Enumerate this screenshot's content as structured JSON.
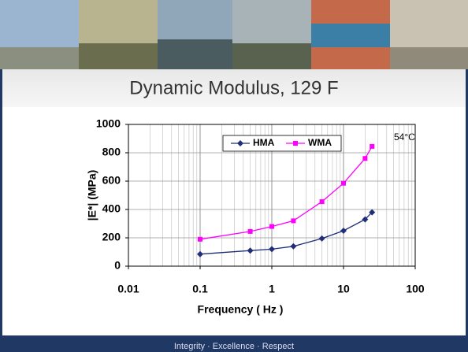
{
  "chart_data": {
    "type": "line",
    "title": "Dynamic Modulus, 129 F",
    "x_label": "Frequency ( Hz )",
    "y_label": "|E*| (MPa)",
    "annotation": "54°C",
    "x": [
      0.1,
      0.5,
      1,
      2,
      5,
      10,
      20,
      25
    ],
    "series": [
      {
        "name": "HMA",
        "color": "#1f2f7a",
        "marker": "diamond",
        "values": [
          85,
          110,
          120,
          140,
          195,
          250,
          330,
          380
        ]
      },
      {
        "name": "WMA",
        "color": "#ff00ff",
        "marker": "square",
        "values": [
          190,
          245,
          280,
          320,
          455,
          585,
          760,
          845
        ]
      }
    ],
    "xlog": true,
    "xlim": [
      0.01,
      100
    ],
    "xticks": [
      0.01,
      0.1,
      1,
      10,
      100
    ],
    "xminorticks": [
      0.02,
      0.03,
      0.04,
      0.05,
      0.06,
      0.07,
      0.08,
      0.09,
      0.2,
      0.3,
      0.4,
      0.5,
      0.6,
      0.7,
      0.8,
      0.9,
      2,
      3,
      4,
      5,
      6,
      7,
      8,
      9,
      20,
      30,
      40,
      50,
      60,
      70,
      80,
      90
    ],
    "ylim": [
      0,
      1000
    ],
    "yticks": [
      0,
      200,
      400,
      600,
      800,
      1000
    ],
    "grid": true,
    "legend": "top"
  },
  "footer": "Integrity · Excellence · Respect"
}
